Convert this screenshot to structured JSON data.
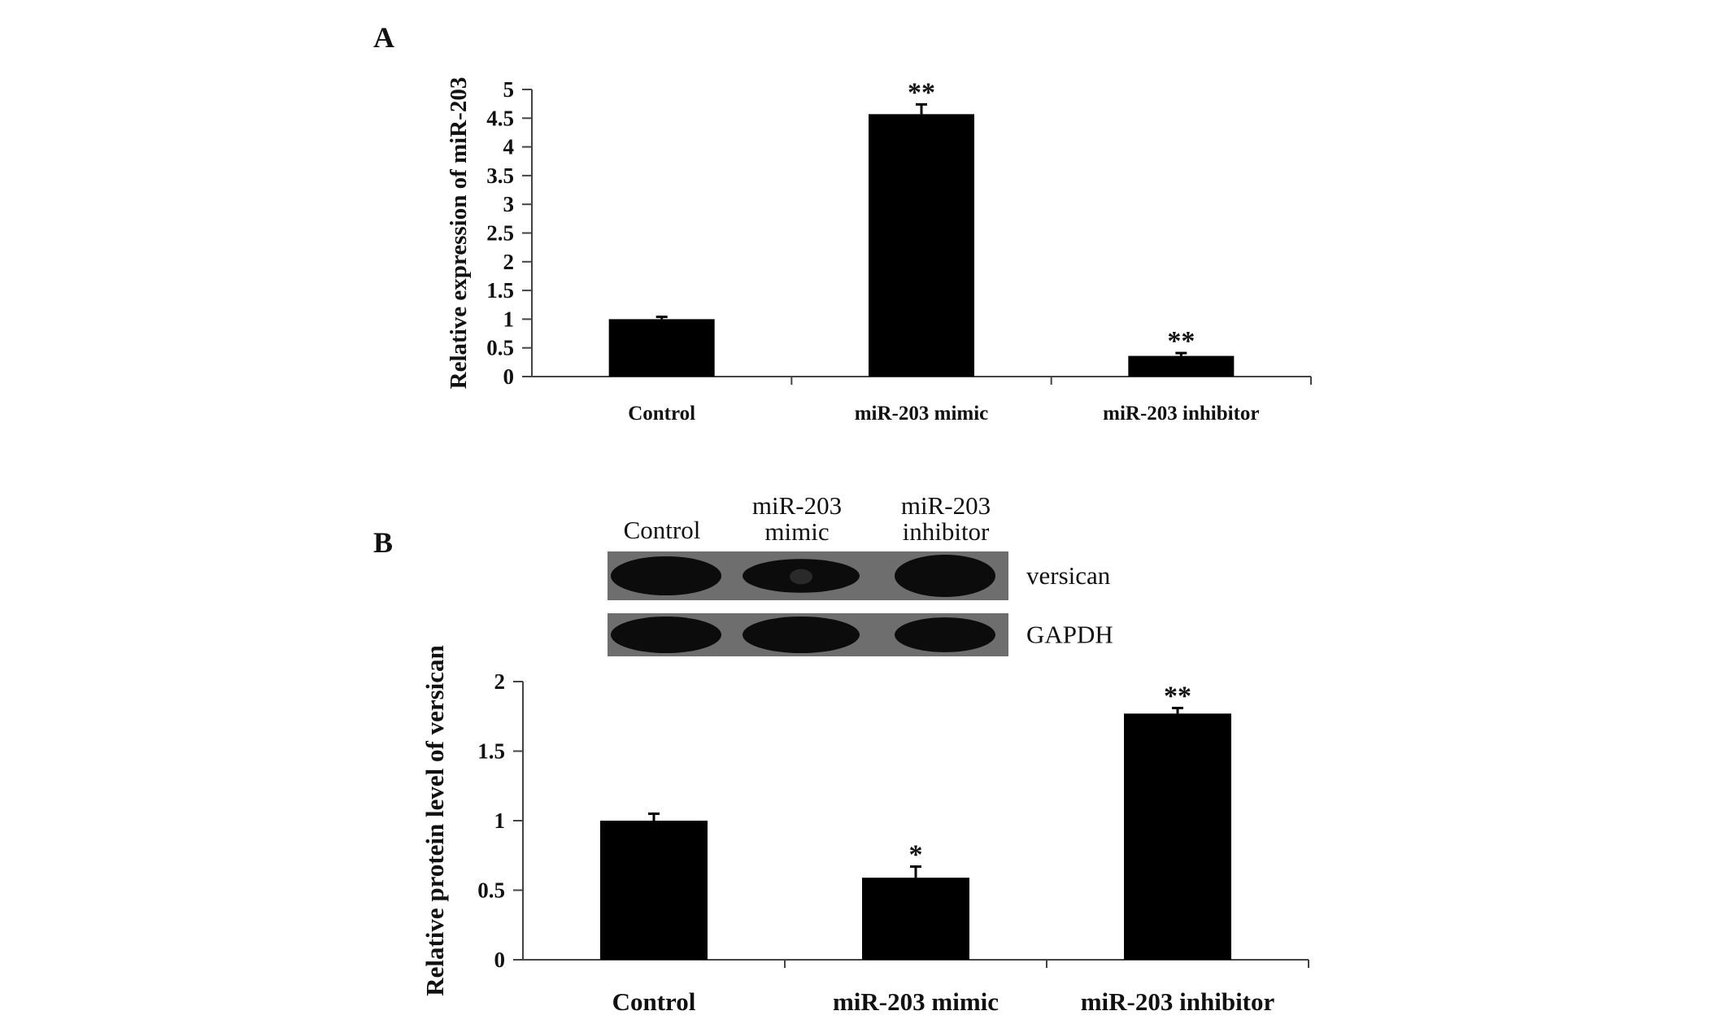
{
  "panels": {
    "a": {
      "letter": "A"
    },
    "b": {
      "letter": "B"
    }
  },
  "colors": {
    "bar": "#000000",
    "axis": "#444444",
    "text": "#111111",
    "blot_bg": "#6e6e6e",
    "band": "#0c0c0c"
  },
  "blot": {
    "lanes": [
      [
        "Control"
      ],
      [
        "miR-203",
        "mimic"
      ],
      [
        "miR-203",
        "inhibitor"
      ]
    ],
    "rows": [
      {
        "name": "versican",
        "band_intensity": [
          0.85,
          0.6,
          1.0
        ]
      },
      {
        "name": "GAPDH",
        "band_intensity": [
          1.0,
          1.0,
          0.9
        ]
      }
    ]
  },
  "chart_data": [
    {
      "type": "bar",
      "panel": "A",
      "categories": [
        "Control",
        "miR-203 mimic",
        "miR-203 inhibitor"
      ],
      "values": [
        1.0,
        4.57,
        0.36
      ],
      "errors": [
        0.04,
        0.17,
        0.05
      ],
      "significance": [
        "",
        "**",
        "**"
      ],
      "xlabel": "",
      "ylabel": "Relative expression of miR-203",
      "ylim": [
        0,
        5
      ],
      "yticks": [
        0,
        0.5,
        1,
        1.5,
        2,
        2.5,
        3,
        3.5,
        4,
        4.5,
        5
      ],
      "grid": false,
      "legend": false
    },
    {
      "type": "bar",
      "panel": "B",
      "categories": [
        "Control",
        "miR-203 mimic",
        "miR-203 inhibitor"
      ],
      "values": [
        1.0,
        0.59,
        1.77
      ],
      "errors": [
        0.05,
        0.08,
        0.04
      ],
      "significance": [
        "",
        "*",
        "**"
      ],
      "xlabel": "",
      "ylabel": "Relative protein level of versican",
      "ylim": [
        0,
        2
      ],
      "yticks": [
        0,
        0.5,
        1,
        1.5,
        2
      ],
      "grid": false,
      "legend": false
    }
  ]
}
